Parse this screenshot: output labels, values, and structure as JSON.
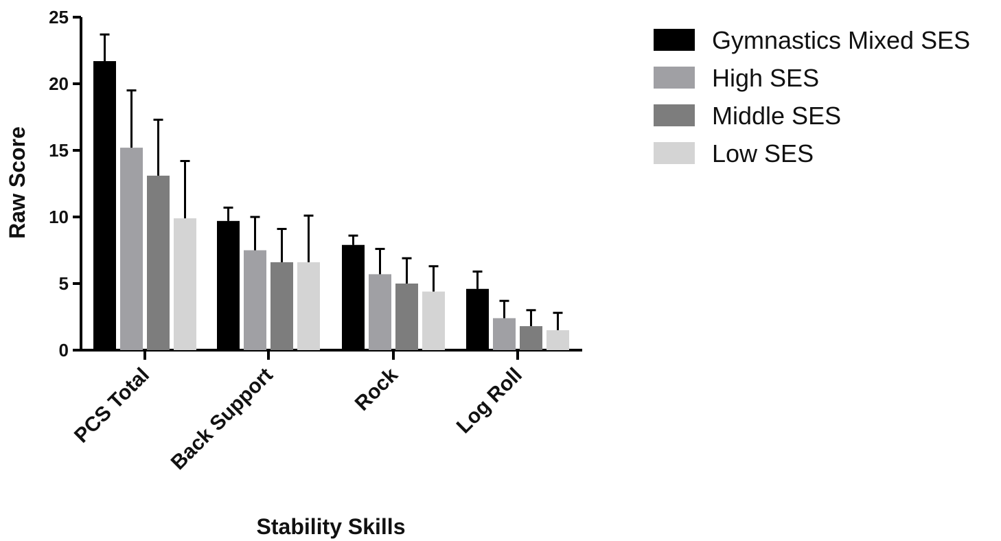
{
  "chart_data": {
    "type": "bar",
    "title": "",
    "xlabel": "Stability Skills",
    "ylabel": "Raw Score",
    "ylim": [
      0,
      25
    ],
    "yticks": [
      0,
      5,
      10,
      15,
      20,
      25
    ],
    "grid": false,
    "legend_position": "top-right",
    "categories": [
      "PCS Total",
      "Back Support",
      "Rock",
      "Log Roll"
    ],
    "series": [
      {
        "name": "Gymnastics Mixed SES",
        "color": "#000000",
        "values": [
          21.7,
          9.7,
          7.9,
          4.6
        ],
        "errors": [
          2.0,
          1.0,
          0.7,
          1.3
        ]
      },
      {
        "name": "High SES",
        "color": "#a0a0a4",
        "values": [
          15.2,
          7.5,
          5.7,
          2.4
        ],
        "errors": [
          4.3,
          2.5,
          1.9,
          1.3
        ]
      },
      {
        "name": "Middle SES",
        "color": "#7d7d7d",
        "values": [
          13.1,
          6.6,
          5.0,
          1.8
        ],
        "errors": [
          4.2,
          2.5,
          1.9,
          1.2
        ]
      },
      {
        "name": "Low SES",
        "color": "#d4d4d4",
        "values": [
          9.9,
          6.6,
          4.4,
          1.5
        ],
        "errors": [
          4.3,
          3.5,
          1.9,
          1.3
        ]
      }
    ]
  }
}
